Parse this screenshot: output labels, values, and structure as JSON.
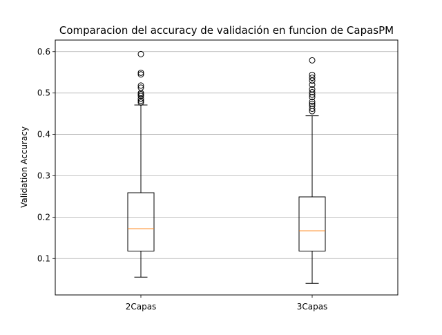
{
  "chart_data": {
    "type": "box",
    "title": "Comparacion del accuracy de validación en funcion de CapasPM",
    "xlabel": "",
    "ylabel": "Validation Accuracy",
    "ylim": [
      0.012,
      0.628
    ],
    "yticks": [
      0.1,
      0.2,
      0.3,
      0.4,
      0.5,
      0.6
    ],
    "grid": "horizontal",
    "colors": {
      "box": "#000000",
      "median": "#ff7f0e",
      "grid": "#b0b0b0",
      "background": "#ffffff"
    },
    "categories": [
      "2Capas",
      "3Capas"
    ],
    "boxes": [
      {
        "label": "2Capas",
        "whisker_low": 0.055,
        "q1": 0.118,
        "median": 0.172,
        "q3": 0.259,
        "whisker_high": 0.471,
        "outliers": [
          0.477,
          0.481,
          0.486,
          0.493,
          0.497,
          0.5,
          0.513,
          0.518,
          0.545,
          0.549,
          0.594
        ]
      },
      {
        "label": "3Capas",
        "whisker_low": 0.04,
        "q1": 0.118,
        "median": 0.167,
        "q3": 0.249,
        "whisker_high": 0.445,
        "outliers": [
          0.456,
          0.462,
          0.469,
          0.474,
          0.479,
          0.49,
          0.496,
          0.502,
          0.509,
          0.52,
          0.53,
          0.537,
          0.544,
          0.579
        ]
      }
    ]
  }
}
